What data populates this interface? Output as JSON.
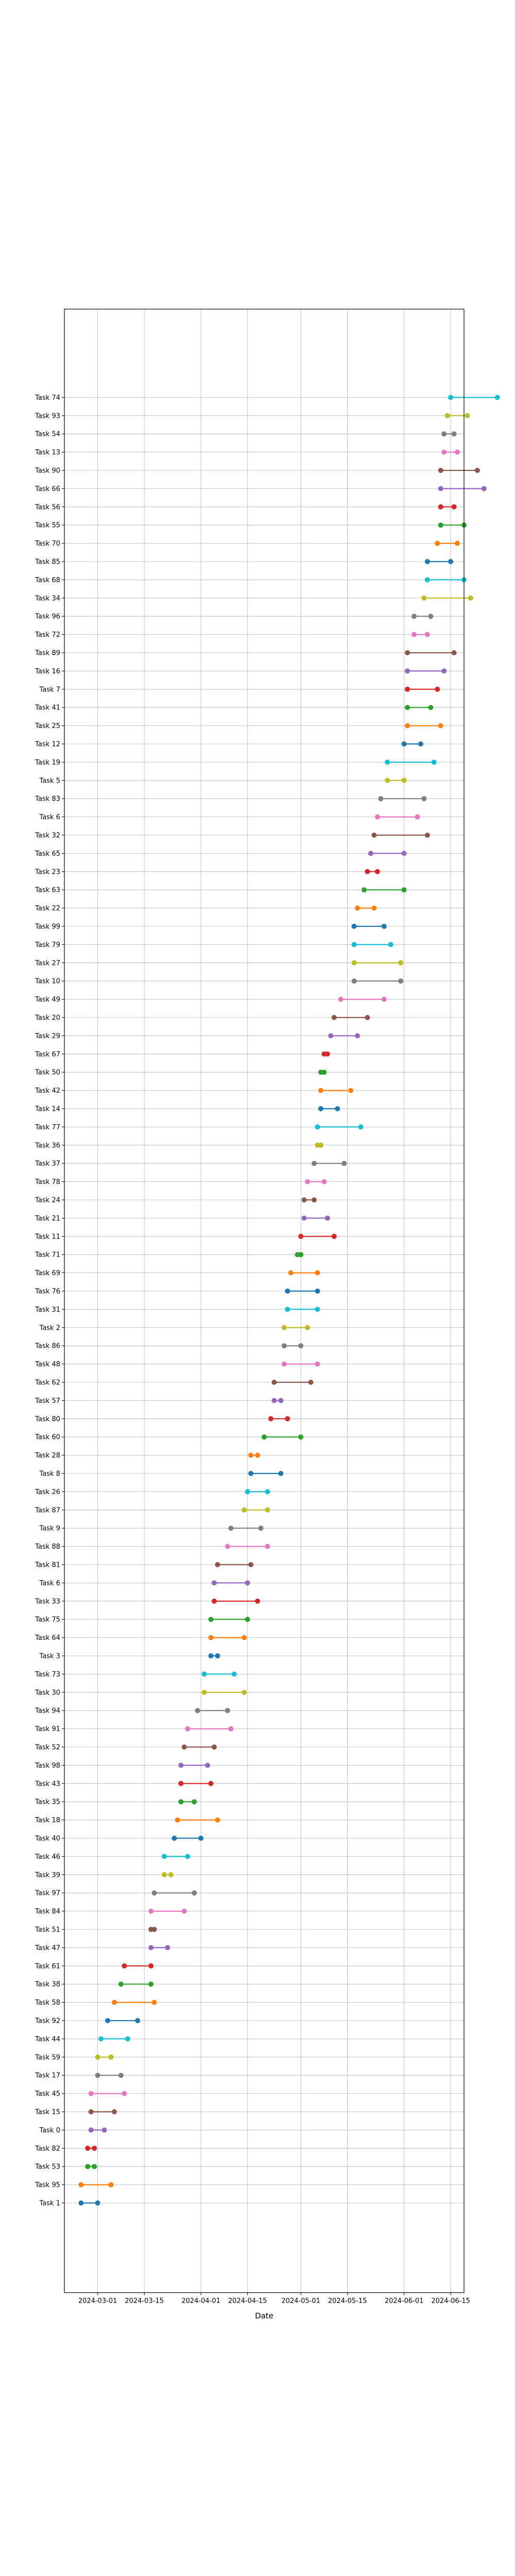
{
  "chart_data": {
    "type": "dumbbell",
    "title": "",
    "xlabel": "Date",
    "ylabel": "",
    "grid": true,
    "xlim": [
      "2024-02-20",
      "2024-06-19"
    ],
    "xticks": [
      "2024-03-01",
      "2024-03-15",
      "2024-04-01",
      "2024-04-15",
      "2024-05-01",
      "2024-05-15",
      "2024-06-01",
      "2024-06-15"
    ],
    "color_cycle": [
      "#1f77b4",
      "#ff7f0e",
      "#2ca02c",
      "#d62728",
      "#9467bd",
      "#8c564b",
      "#e377c2",
      "#7f7f7f",
      "#bcbd22",
      "#17becf"
    ],
    "tasks": [
      {
        "task": "Task 1",
        "start": "2024-02-25",
        "end": "2024-03-01"
      },
      {
        "task": "Task 95",
        "start": "2024-02-25",
        "end": "2024-03-05"
      },
      {
        "task": "Task 53",
        "start": "2024-02-27",
        "end": "2024-02-29"
      },
      {
        "task": "Task 82",
        "start": "2024-02-27",
        "end": "2024-02-29"
      },
      {
        "task": "Task 0",
        "start": "2024-02-28",
        "end": "2024-03-03"
      },
      {
        "task": "Task 15",
        "start": "2024-02-28",
        "end": "2024-03-06"
      },
      {
        "task": "Task 45",
        "start": "2024-02-28",
        "end": "2024-03-09"
      },
      {
        "task": "Task 17",
        "start": "2024-03-01",
        "end": "2024-03-08"
      },
      {
        "task": "Task 59",
        "start": "2024-03-01",
        "end": "2024-03-05"
      },
      {
        "task": "Task 44",
        "start": "2024-03-02",
        "end": "2024-03-10"
      },
      {
        "task": "Task 92",
        "start": "2024-03-04",
        "end": "2024-03-13"
      },
      {
        "task": "Task 58",
        "start": "2024-03-06",
        "end": "2024-03-18"
      },
      {
        "task": "Task 38",
        "start": "2024-03-08",
        "end": "2024-03-17"
      },
      {
        "task": "Task 61",
        "start": "2024-03-09",
        "end": "2024-03-17"
      },
      {
        "task": "Task 47",
        "start": "2024-03-17",
        "end": "2024-03-22"
      },
      {
        "task": "Task 51",
        "start": "2024-03-17",
        "end": "2024-03-18"
      },
      {
        "task": "Task 84",
        "start": "2024-03-17",
        "end": "2024-03-27"
      },
      {
        "task": "Task 97",
        "start": "2024-03-18",
        "end": "2024-03-30"
      },
      {
        "task": "Task 39",
        "start": "2024-03-21",
        "end": "2024-03-23"
      },
      {
        "task": "Task 46",
        "start": "2024-03-21",
        "end": "2024-03-28"
      },
      {
        "task": "Task 40",
        "start": "2024-03-24",
        "end": "2024-04-01"
      },
      {
        "task": "Task 18",
        "start": "2024-03-25",
        "end": "2024-04-06"
      },
      {
        "task": "Task 35",
        "start": "2024-03-26",
        "end": "2024-03-30"
      },
      {
        "task": "Task 43",
        "start": "2024-03-26",
        "end": "2024-04-04"
      },
      {
        "task": "Task 98",
        "start": "2024-03-26",
        "end": "2024-04-03"
      },
      {
        "task": "Task 52",
        "start": "2024-03-27",
        "end": "2024-04-05"
      },
      {
        "task": "Task 91",
        "start": "2024-03-28",
        "end": "2024-04-10"
      },
      {
        "task": "Task 94",
        "start": "2024-03-31",
        "end": "2024-04-09"
      },
      {
        "task": "Task 30",
        "start": "2024-04-02",
        "end": "2024-04-14"
      },
      {
        "task": "Task 73",
        "start": "2024-04-02",
        "end": "2024-04-11"
      },
      {
        "task": "Task 3",
        "start": "2024-04-04",
        "end": "2024-04-06"
      },
      {
        "task": "Task 64",
        "start": "2024-04-04",
        "end": "2024-04-14"
      },
      {
        "task": "Task 75",
        "start": "2024-04-04",
        "end": "2024-04-15"
      },
      {
        "task": "Task 33",
        "start": "2024-04-05",
        "end": "2024-04-18"
      },
      {
        "task": "Task 6",
        "start": "2024-04-05",
        "end": "2024-04-15"
      },
      {
        "task": "Task 81",
        "start": "2024-04-06",
        "end": "2024-04-16"
      },
      {
        "task": "Task 88",
        "start": "2024-04-09",
        "end": "2024-04-21"
      },
      {
        "task": "Task 9",
        "start": "2024-04-10",
        "end": "2024-04-19"
      },
      {
        "task": "Task 87",
        "start": "2024-04-14",
        "end": "2024-04-21"
      },
      {
        "task": "Task 26",
        "start": "2024-04-15",
        "end": "2024-04-21"
      },
      {
        "task": "Task 8",
        "start": "2024-04-16",
        "end": "2024-04-25"
      },
      {
        "task": "Task 28",
        "start": "2024-04-16",
        "end": "2024-04-18"
      },
      {
        "task": "Task 60",
        "start": "2024-04-20",
        "end": "2024-05-01"
      },
      {
        "task": "Task 80",
        "start": "2024-04-22",
        "end": "2024-04-27"
      },
      {
        "task": "Task 57",
        "start": "2024-04-23",
        "end": "2024-04-25"
      },
      {
        "task": "Task 62",
        "start": "2024-04-23",
        "end": "2024-05-04"
      },
      {
        "task": "Task 48",
        "start": "2024-04-26",
        "end": "2024-05-06"
      },
      {
        "task": "Task 86",
        "start": "2024-04-26",
        "end": "2024-05-01"
      },
      {
        "task": "Task 2",
        "start": "2024-04-26",
        "end": "2024-05-03"
      },
      {
        "task": "Task 31",
        "start": "2024-04-27",
        "end": "2024-05-06"
      },
      {
        "task": "Task 76",
        "start": "2024-04-27",
        "end": "2024-05-06"
      },
      {
        "task": "Task 69",
        "start": "2024-04-28",
        "end": "2024-05-06"
      },
      {
        "task": "Task 71",
        "start": "2024-04-30",
        "end": "2024-05-01"
      },
      {
        "task": "Task 11",
        "start": "2024-05-01",
        "end": "2024-05-11"
      },
      {
        "task": "Task 21",
        "start": "2024-05-02",
        "end": "2024-05-09"
      },
      {
        "task": "Task 24",
        "start": "2024-05-02",
        "end": "2024-05-05"
      },
      {
        "task": "Task 78",
        "start": "2024-05-03",
        "end": "2024-05-08"
      },
      {
        "task": "Task 37",
        "start": "2024-05-05",
        "end": "2024-05-14"
      },
      {
        "task": "Task 36",
        "start": "2024-05-06",
        "end": "2024-05-07"
      },
      {
        "task": "Task 77",
        "start": "2024-05-06",
        "end": "2024-05-19"
      },
      {
        "task": "Task 14",
        "start": "2024-05-07",
        "end": "2024-05-12"
      },
      {
        "task": "Task 42",
        "start": "2024-05-07",
        "end": "2024-05-16"
      },
      {
        "task": "Task 50",
        "start": "2024-05-07",
        "end": "2024-05-08"
      },
      {
        "task": "Task 67",
        "start": "2024-05-08",
        "end": "2024-05-09"
      },
      {
        "task": "Task 29",
        "start": "2024-05-10",
        "end": "2024-05-18"
      },
      {
        "task": "Task 20",
        "start": "2024-05-11",
        "end": "2024-05-21"
      },
      {
        "task": "Task 49",
        "start": "2024-05-13",
        "end": "2024-05-26"
      },
      {
        "task": "Task 10",
        "start": "2024-05-17",
        "end": "2024-05-31"
      },
      {
        "task": "Task 27",
        "start": "2024-05-17",
        "end": "2024-05-31"
      },
      {
        "task": "Task 79",
        "start": "2024-05-17",
        "end": "2024-05-28"
      },
      {
        "task": "Task 99",
        "start": "2024-05-17",
        "end": "2024-05-26"
      },
      {
        "task": "Task 22",
        "start": "2024-05-18",
        "end": "2024-05-23"
      },
      {
        "task": "Task 63",
        "start": "2024-05-20",
        "end": "2024-06-01"
      },
      {
        "task": "Task 23",
        "start": "2024-05-21",
        "end": "2024-05-24"
      },
      {
        "task": "Task 65",
        "start": "2024-05-22",
        "end": "2024-06-01"
      },
      {
        "task": "Task 32",
        "start": "2024-05-23",
        "end": "2024-06-08"
      },
      {
        "task": "Task 6",
        "start": "2024-05-24",
        "end": "2024-06-05"
      },
      {
        "task": "Task 83",
        "start": "2024-05-25",
        "end": "2024-06-07"
      },
      {
        "task": "Task 5",
        "start": "2024-05-27",
        "end": "2024-06-01"
      },
      {
        "task": "Task 19",
        "start": "2024-05-27",
        "end": "2024-06-10"
      },
      {
        "task": "Task 12",
        "start": "2024-06-01",
        "end": "2024-06-06"
      },
      {
        "task": "Task 25",
        "start": "2024-06-02",
        "end": "2024-06-12"
      },
      {
        "task": "Task 41",
        "start": "2024-06-02",
        "end": "2024-06-09"
      },
      {
        "task": "Task 7",
        "start": "2024-06-02",
        "end": "2024-06-11"
      },
      {
        "task": "Task 16",
        "start": "2024-06-02",
        "end": "2024-06-13"
      },
      {
        "task": "Task 89",
        "start": "2024-06-02",
        "end": "2024-06-16"
      },
      {
        "task": "Task 72",
        "start": "2024-06-04",
        "end": "2024-06-08"
      },
      {
        "task": "Task 96",
        "start": "2024-06-04",
        "end": "2024-06-09"
      },
      {
        "task": "Task 34",
        "start": "2024-06-07",
        "end": "2024-06-21"
      },
      {
        "task": "Task 68",
        "start": "2024-06-08",
        "end": "2024-06-19"
      },
      {
        "task": "Task 85",
        "start": "2024-06-08",
        "end": "2024-06-15"
      },
      {
        "task": "Task 70",
        "start": "2024-06-11",
        "end": "2024-06-17"
      },
      {
        "task": "Task 55",
        "start": "2024-06-12",
        "end": "2024-06-19"
      },
      {
        "task": "Task 56",
        "start": "2024-06-12",
        "end": "2024-06-16"
      },
      {
        "task": "Task 66",
        "start": "2024-06-12",
        "end": "2024-06-25"
      },
      {
        "task": "Task 90",
        "start": "2024-06-12",
        "end": "2024-06-23"
      },
      {
        "task": "Task 13",
        "start": "2024-06-13",
        "end": "2024-06-17"
      },
      {
        "task": "Task 54",
        "start": "2024-06-13",
        "end": "2024-06-16"
      },
      {
        "task": "Task 93",
        "start": "2024-06-14",
        "end": "2024-06-20"
      },
      {
        "task": "Task 74",
        "start": "2024-06-15",
        "end": "2024-06-29"
      }
    ]
  }
}
